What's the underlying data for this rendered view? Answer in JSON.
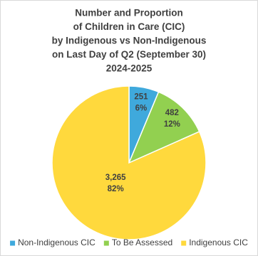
{
  "chart_data": {
    "type": "pie",
    "title": [
      "Number and Proportion",
      "of Children in Care (CIC)",
      "by Indigenous vs Non-Indigenous",
      "on Last Day of Q2 (September 30)",
      "2024-2025"
    ],
    "categories": [
      "Non-Indigenous CIC",
      "To Be Assessed",
      "Indigenous CIC"
    ],
    "values": [
      251,
      482,
      3265
    ],
    "value_labels": [
      "251",
      "482",
      "3,265"
    ],
    "percents": [
      6,
      12,
      82
    ],
    "percent_labels": [
      "6%",
      "12%",
      "82%"
    ],
    "colors": [
      "#3fa9dc",
      "#92d050",
      "#ffd93d"
    ],
    "legend": "bottom"
  }
}
